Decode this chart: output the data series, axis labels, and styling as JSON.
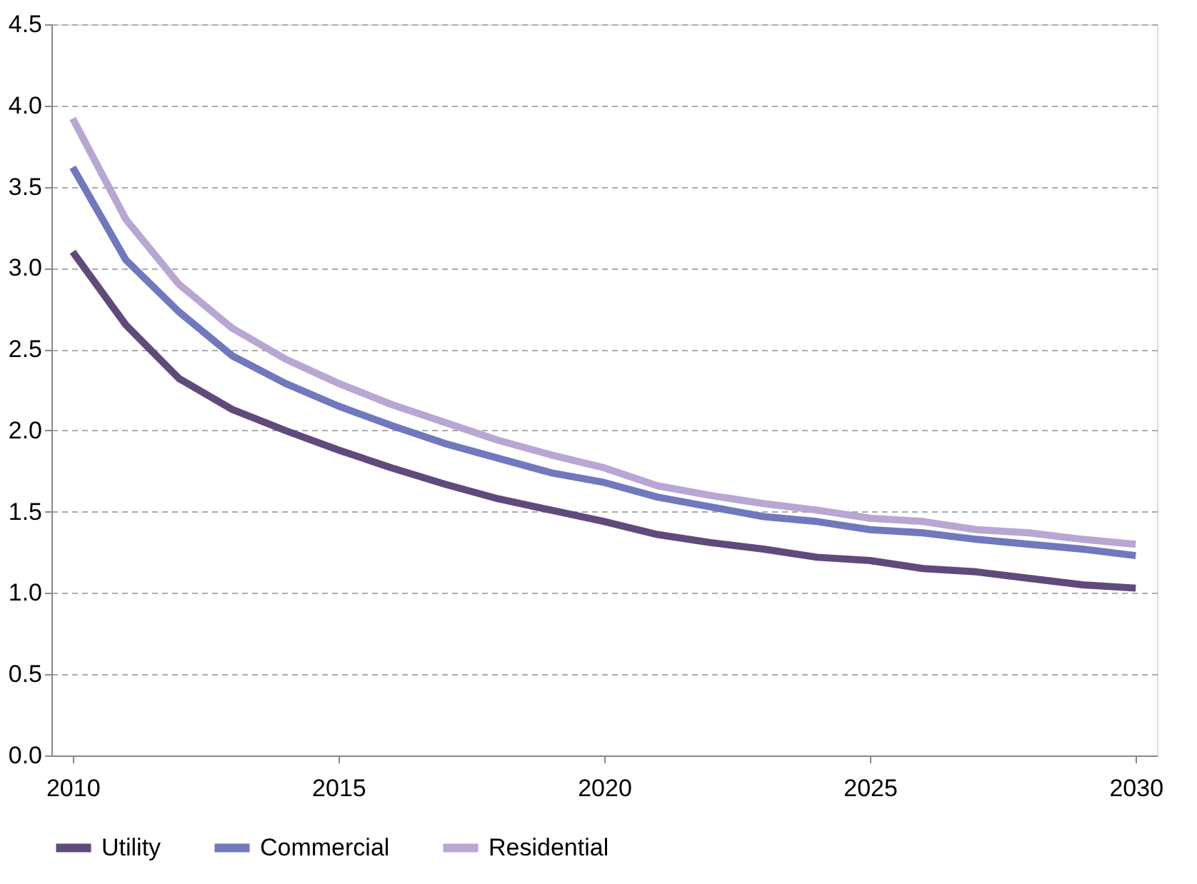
{
  "chart_data": {
    "type": "line",
    "x": [
      2010,
      2011,
      2012,
      2013,
      2014,
      2015,
      2016,
      2017,
      2018,
      2019,
      2020,
      2021,
      2022,
      2023,
      2024,
      2025,
      2026,
      2027,
      2028,
      2029,
      2030
    ],
    "series": [
      {
        "name": "Utility",
        "color": "#604a7b",
        "values": [
          3.1,
          2.65,
          2.32,
          2.13,
          2.0,
          1.88,
          1.77,
          1.67,
          1.58,
          1.51,
          1.44,
          1.36,
          1.31,
          1.27,
          1.22,
          1.2,
          1.15,
          1.13,
          1.09,
          1.05,
          1.03
        ]
      },
      {
        "name": "Commercial",
        "color": "#7079bd",
        "values": [
          3.62,
          3.05,
          2.73,
          2.46,
          2.29,
          2.15,
          2.03,
          1.92,
          1.83,
          1.74,
          1.68,
          1.59,
          1.53,
          1.47,
          1.44,
          1.39,
          1.37,
          1.33,
          1.3,
          1.27,
          1.23
        ]
      },
      {
        "name": "Residential",
        "color": "#b8a6d3",
        "values": [
          3.92,
          3.3,
          2.9,
          2.63,
          2.44,
          2.29,
          2.16,
          2.05,
          1.94,
          1.85,
          1.77,
          1.66,
          1.6,
          1.55,
          1.51,
          1.46,
          1.44,
          1.39,
          1.37,
          1.33,
          1.3
        ]
      }
    ],
    "xlim": [
      2009.6,
      2030.4
    ],
    "xticks": [
      2010,
      2015,
      2020,
      2025,
      2030
    ],
    "ylim": [
      0,
      4.5
    ],
    "yticks": [
      {
        "value": 0,
        "label": "0.0"
      },
      {
        "value": 0.5,
        "label": "0.5"
      },
      {
        "value": 1,
        "label": "1.0"
      },
      {
        "value": 1.5,
        "label": "1.5"
      },
      {
        "value": 2,
        "label": "2.0"
      },
      {
        "value": 2.5,
        "label": "2.5"
      },
      {
        "value": 3,
        "label": "3.0"
      },
      {
        "value": 3.5,
        "label": "3.5"
      },
      {
        "value": 4,
        "label": "4.0"
      },
      {
        "value": 4.5,
        "label": "4.5"
      }
    ],
    "grid": "y",
    "legend": "bottom",
    "marker": "none",
    "line_style": "solid"
  }
}
